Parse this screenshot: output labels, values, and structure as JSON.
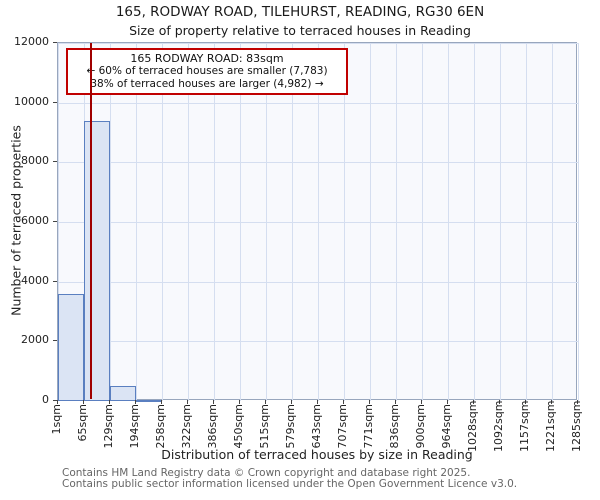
{
  "title": {
    "line1": "165, RODWAY ROAD, TILEHURST, READING, RG30 6EN",
    "line2": "Size of property relative to terraced houses in Reading"
  },
  "chart_data": {
    "type": "bar",
    "title": "165, RODWAY ROAD, TILEHURST, READING, RG30 6EN — Size of property relative to terraced houses in Reading",
    "xlabel": "Distribution of terraced houses by size in Reading",
    "ylabel": "Number of terraced properties",
    "xlim": [
      1,
      1285
    ],
    "ylim": [
      0,
      12000
    ],
    "y_ticks": [
      0,
      2000,
      4000,
      6000,
      8000,
      10000,
      12000
    ],
    "bin_edges": [
      1,
      65,
      129,
      194,
      258,
      322,
      386,
      450,
      515,
      579,
      643,
      707,
      771,
      836,
      900,
      964,
      1028,
      1092,
      1157,
      1221,
      1285
    ],
    "x_tick_labels": [
      "1sqm",
      "65sqm",
      "129sqm",
      "194sqm",
      "258sqm",
      "322sqm",
      "386sqm",
      "450sqm",
      "515sqm",
      "579sqm",
      "643sqm",
      "707sqm",
      "771sqm",
      "836sqm",
      "900sqm",
      "964sqm",
      "1028sqm",
      "1092sqm",
      "1157sqm",
      "1221sqm",
      "1285sqm"
    ],
    "values": [
      3600,
      9400,
      500,
      50,
      0,
      0,
      0,
      0,
      0,
      0,
      0,
      0,
      0,
      0,
      0,
      0,
      0,
      0,
      0,
      0
    ],
    "grid": true,
    "legend": "none",
    "marker": {
      "value_sqm": 83,
      "color": "#a00000"
    },
    "bar_fill": "#dbe4f4",
    "bar_edge": "#5a7fc0",
    "plot_background": "#f8f9fd",
    "grid_color": "#d5def0"
  },
  "annotation": {
    "line1": "165 RODWAY ROAD: 83sqm",
    "line2": "← 60% of terraced houses are smaller (7,783)",
    "line3": "38% of terraced houses are larger (4,982) →"
  },
  "footer": {
    "line1": "Contains HM Land Registry data © Crown copyright and database right 2025.",
    "line2": "Contains public sector information licensed under the Open Government Licence v3.0."
  }
}
